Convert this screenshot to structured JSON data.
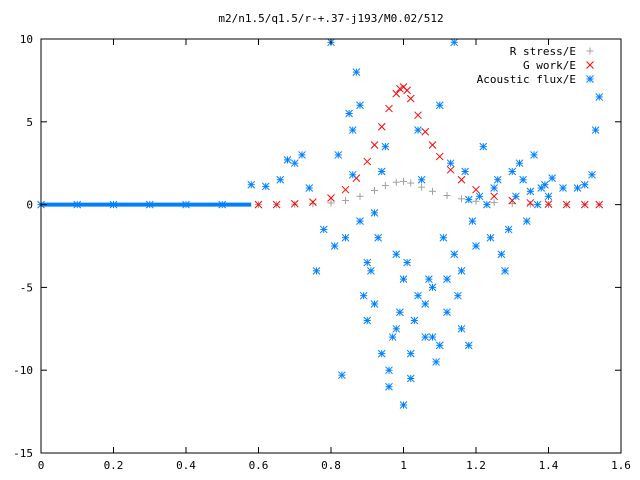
{
  "chart_data": {
    "type": "scatter",
    "title": "m2/n1.5/q1.5/r-+.37-j193/M0.02/512",
    "xlabel": "",
    "ylabel": "",
    "xlim": [
      0,
      1.6
    ],
    "ylim": [
      -15,
      10
    ],
    "x_ticks": [
      "0",
      "0.2",
      "0.4",
      "0.6",
      "0.8",
      "1",
      "1.2",
      "1.4",
      "1.6"
    ],
    "y_ticks": [
      "-15",
      "-10",
      "-5",
      "0",
      "5",
      "10"
    ],
    "grid": false,
    "legend_position": "top-right",
    "series": [
      {
        "name": "R stress/E",
        "marker": "plus",
        "color": "#a0a0a0",
        "x": [
          0.6,
          0.65,
          0.7,
          0.75,
          0.8,
          0.84,
          0.88,
          0.92,
          0.95,
          0.98,
          1.0,
          1.02,
          1.05,
          1.08,
          1.12,
          1.16,
          1.2,
          1.25,
          1.3,
          1.35,
          1.4,
          1.45,
          1.5,
          1.54
        ],
        "y": [
          0.0,
          0.0,
          0.02,
          0.05,
          0.1,
          0.25,
          0.5,
          0.85,
          1.15,
          1.35,
          1.4,
          1.3,
          1.05,
          0.8,
          0.55,
          0.35,
          0.2,
          0.12,
          0.06,
          0.02,
          0.0,
          0.0,
          0.0,
          0.0
        ]
      },
      {
        "name": "G work/E",
        "marker": "cross",
        "color": "#ff0000",
        "x": [
          0.6,
          0.65,
          0.7,
          0.75,
          0.8,
          0.84,
          0.87,
          0.9,
          0.92,
          0.94,
          0.96,
          0.98,
          0.99,
          1.0,
          1.01,
          1.02,
          1.04,
          1.06,
          1.08,
          1.1,
          1.13,
          1.16,
          1.2,
          1.25,
          1.3,
          1.35,
          1.4,
          1.45,
          1.5,
          1.54
        ],
        "y": [
          0.0,
          0.0,
          0.05,
          0.15,
          0.4,
          0.9,
          1.6,
          2.6,
          3.6,
          4.7,
          5.8,
          6.7,
          7.0,
          7.1,
          6.9,
          6.4,
          5.4,
          4.4,
          3.6,
          2.9,
          2.1,
          1.5,
          0.9,
          0.5,
          0.25,
          0.1,
          0.03,
          0.0,
          0.0,
          0.0
        ]
      },
      {
        "name": "Acoustic flux/E",
        "marker": "star",
        "color": "#0080ff",
        "x": [
          0.0,
          0.1,
          0.2,
          0.3,
          0.4,
          0.5,
          0.58,
          0.62,
          0.66,
          0.7,
          0.74,
          0.78,
          0.8,
          0.82,
          0.84,
          0.86,
          0.88,
          0.9,
          0.92,
          0.94,
          0.96,
          0.98,
          1.0,
          1.02,
          1.04,
          1.06,
          1.08,
          1.1,
          1.12,
          1.14,
          1.16,
          1.18,
          1.2,
          1.22,
          1.24,
          1.26,
          1.28,
          1.3,
          1.32,
          1.34,
          1.36,
          1.38,
          1.4,
          1.44,
          1.48,
          1.5,
          1.52,
          1.53,
          1.54,
          0.81,
          0.85,
          0.87,
          0.89,
          0.91,
          0.93,
          0.95,
          0.97,
          0.99,
          1.01,
          1.03,
          1.05,
          1.07,
          1.09,
          1.11,
          1.13,
          1.15,
          1.17,
          0.76,
          0.72,
          0.68,
          1.19,
          1.23,
          1.27,
          1.31,
          1.33,
          1.37,
          0.83,
          0.9,
          0.96,
          1.0,
          1.02,
          1.06,
          1.1,
          1.14,
          1.18,
          0.88,
          0.94,
          0.98,
          1.04,
          1.08,
          1.12,
          1.16,
          0.86,
          0.92,
          1.21,
          1.25,
          1.29,
          1.35,
          1.39,
          1.41
        ],
        "y": [
          0.0,
          0.0,
          0.0,
          0.0,
          0.0,
          0.0,
          1.2,
          1.1,
          1.5,
          2.5,
          1.0,
          -1.5,
          9.8,
          3.0,
          -2.0,
          4.5,
          6.0,
          -3.5,
          -6.0,
          2.0,
          -10.0,
          -7.5,
          -12.1,
          -9.0,
          4.5,
          -8.0,
          -5.0,
          6.0,
          -6.5,
          9.8,
          -4.0,
          -8.5,
          -2.5,
          3.5,
          -2.0,
          1.5,
          -4.0,
          2.0,
          2.5,
          -1.0,
          3.0,
          1.0,
          0.5,
          1.0,
          1.0,
          1.2,
          1.8,
          4.5,
          6.5,
          -2.5,
          5.5,
          8.0,
          -5.5,
          -4.0,
          -2.0,
          3.5,
          -8.0,
          -6.5,
          -3.5,
          -7.0,
          1.5,
          -4.5,
          -9.5,
          -2.0,
          2.5,
          -5.5,
          2.0,
          -4.0,
          3.0,
          2.7,
          -1.0,
          0.0,
          -3.0,
          0.5,
          1.5,
          0.0,
          -10.3,
          -7.0,
          -11.0,
          -4.5,
          -10.5,
          -6.0,
          -8.5,
          -3.0,
          0.3,
          -1.0,
          -9.0,
          -3.0,
          -5.5,
          -8.0,
          -4.5,
          -7.5,
          1.8,
          -0.5,
          0.5,
          1.0,
          -1.5,
          0.8,
          1.2,
          1.6
        ]
      }
    ]
  }
}
